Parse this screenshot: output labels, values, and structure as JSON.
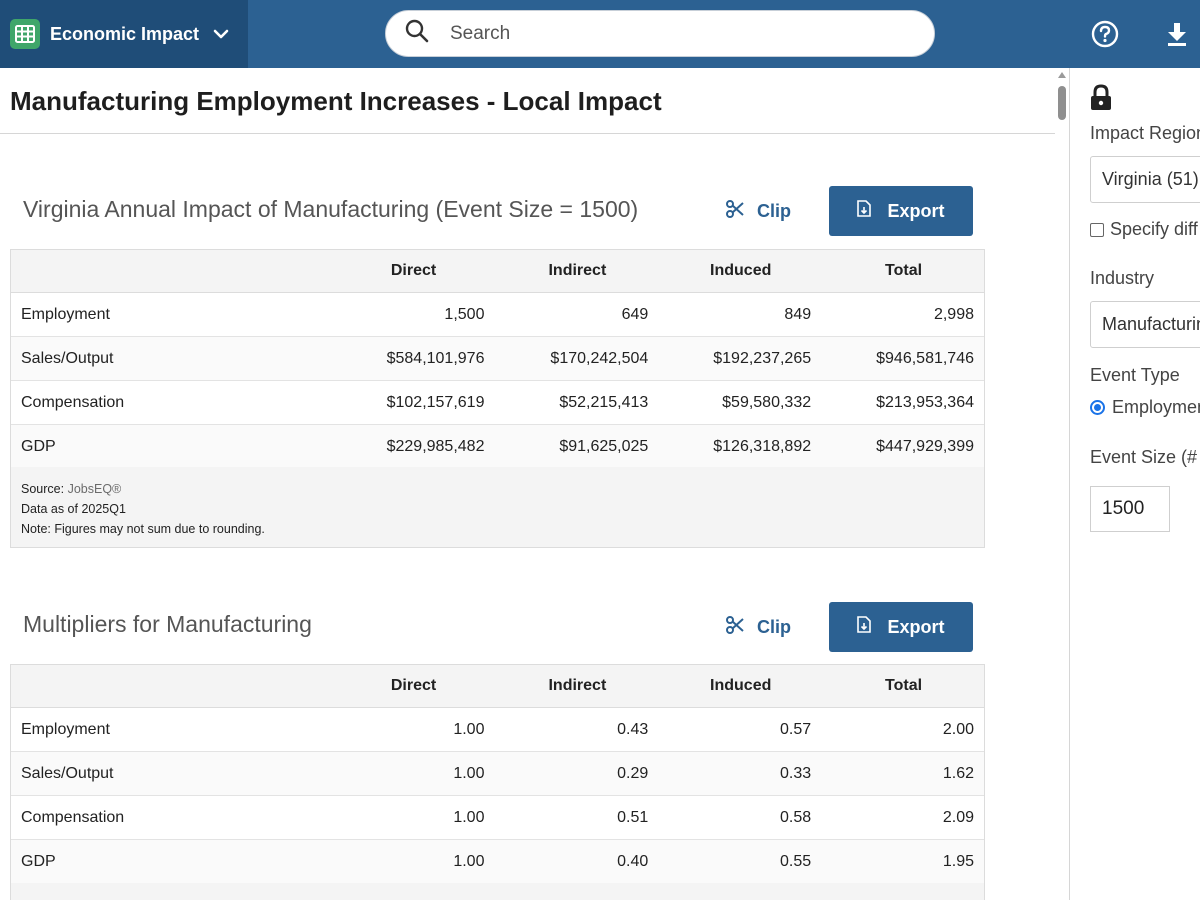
{
  "header": {
    "app_title": "Economic Impact",
    "search_placeholder": "Search",
    "brand_color": "#2c6192",
    "app_switch_color": "#1f4d78",
    "icons": [
      "grid-icon",
      "chevron-down-icon",
      "search-icon",
      "help-icon",
      "download-icon"
    ]
  },
  "main": {
    "page_title": "Manufacturing Employment Increases - Local Impact",
    "sections": [
      {
        "title": "Virginia Annual Impact of Manufacturing (Event Size = 1500)",
        "clip_label": "Clip",
        "export_label": "Export",
        "columns": [
          "",
          "Direct",
          "Indirect",
          "Induced",
          "Total"
        ],
        "rows": [
          [
            "Employment",
            "1,500",
            "649",
            "849",
            "2,998"
          ],
          [
            "Sales/Output",
            "$584,101,976",
            "$170,242,504",
            "$192,237,265",
            "$946,581,746"
          ],
          [
            "Compensation",
            "$102,157,619",
            "$52,215,413",
            "$59,580,332",
            "$213,953,364"
          ],
          [
            "GDP",
            "$229,985,482",
            "$91,625,025",
            "$126,318,892",
            "$447,929,399"
          ]
        ],
        "source_label": "Source:",
        "source_link": "JobsEQ®",
        "data_as_of": "Data as of 2025Q1",
        "note": "Note: Figures may not sum due to rounding."
      },
      {
        "title": "Multipliers for Manufacturing",
        "clip_label": "Clip",
        "export_label": "Export",
        "columns": [
          "",
          "Direct",
          "Indirect",
          "Induced",
          "Total"
        ],
        "rows": [
          [
            "Employment",
            "1.00",
            "0.43",
            "0.57",
            "2.00"
          ],
          [
            "Sales/Output",
            "1.00",
            "0.29",
            "0.33",
            "1.62"
          ],
          [
            "Compensation",
            "1.00",
            "0.51",
            "0.58",
            "2.09"
          ],
          [
            "GDP",
            "1.00",
            "0.40",
            "0.55",
            "1.95"
          ]
        ]
      }
    ]
  },
  "panel": {
    "lock_icon": "lock-icon",
    "impact_region_label": "Impact Region",
    "impact_region_value": "Virginia (51)",
    "specify_label": "Specify diff",
    "industry_label": "Industry",
    "industry_value": "Manufacturing",
    "event_type_label": "Event Type",
    "event_type_value": "Employment",
    "event_size_label": "Event Size (#",
    "event_size_value": "1500"
  }
}
